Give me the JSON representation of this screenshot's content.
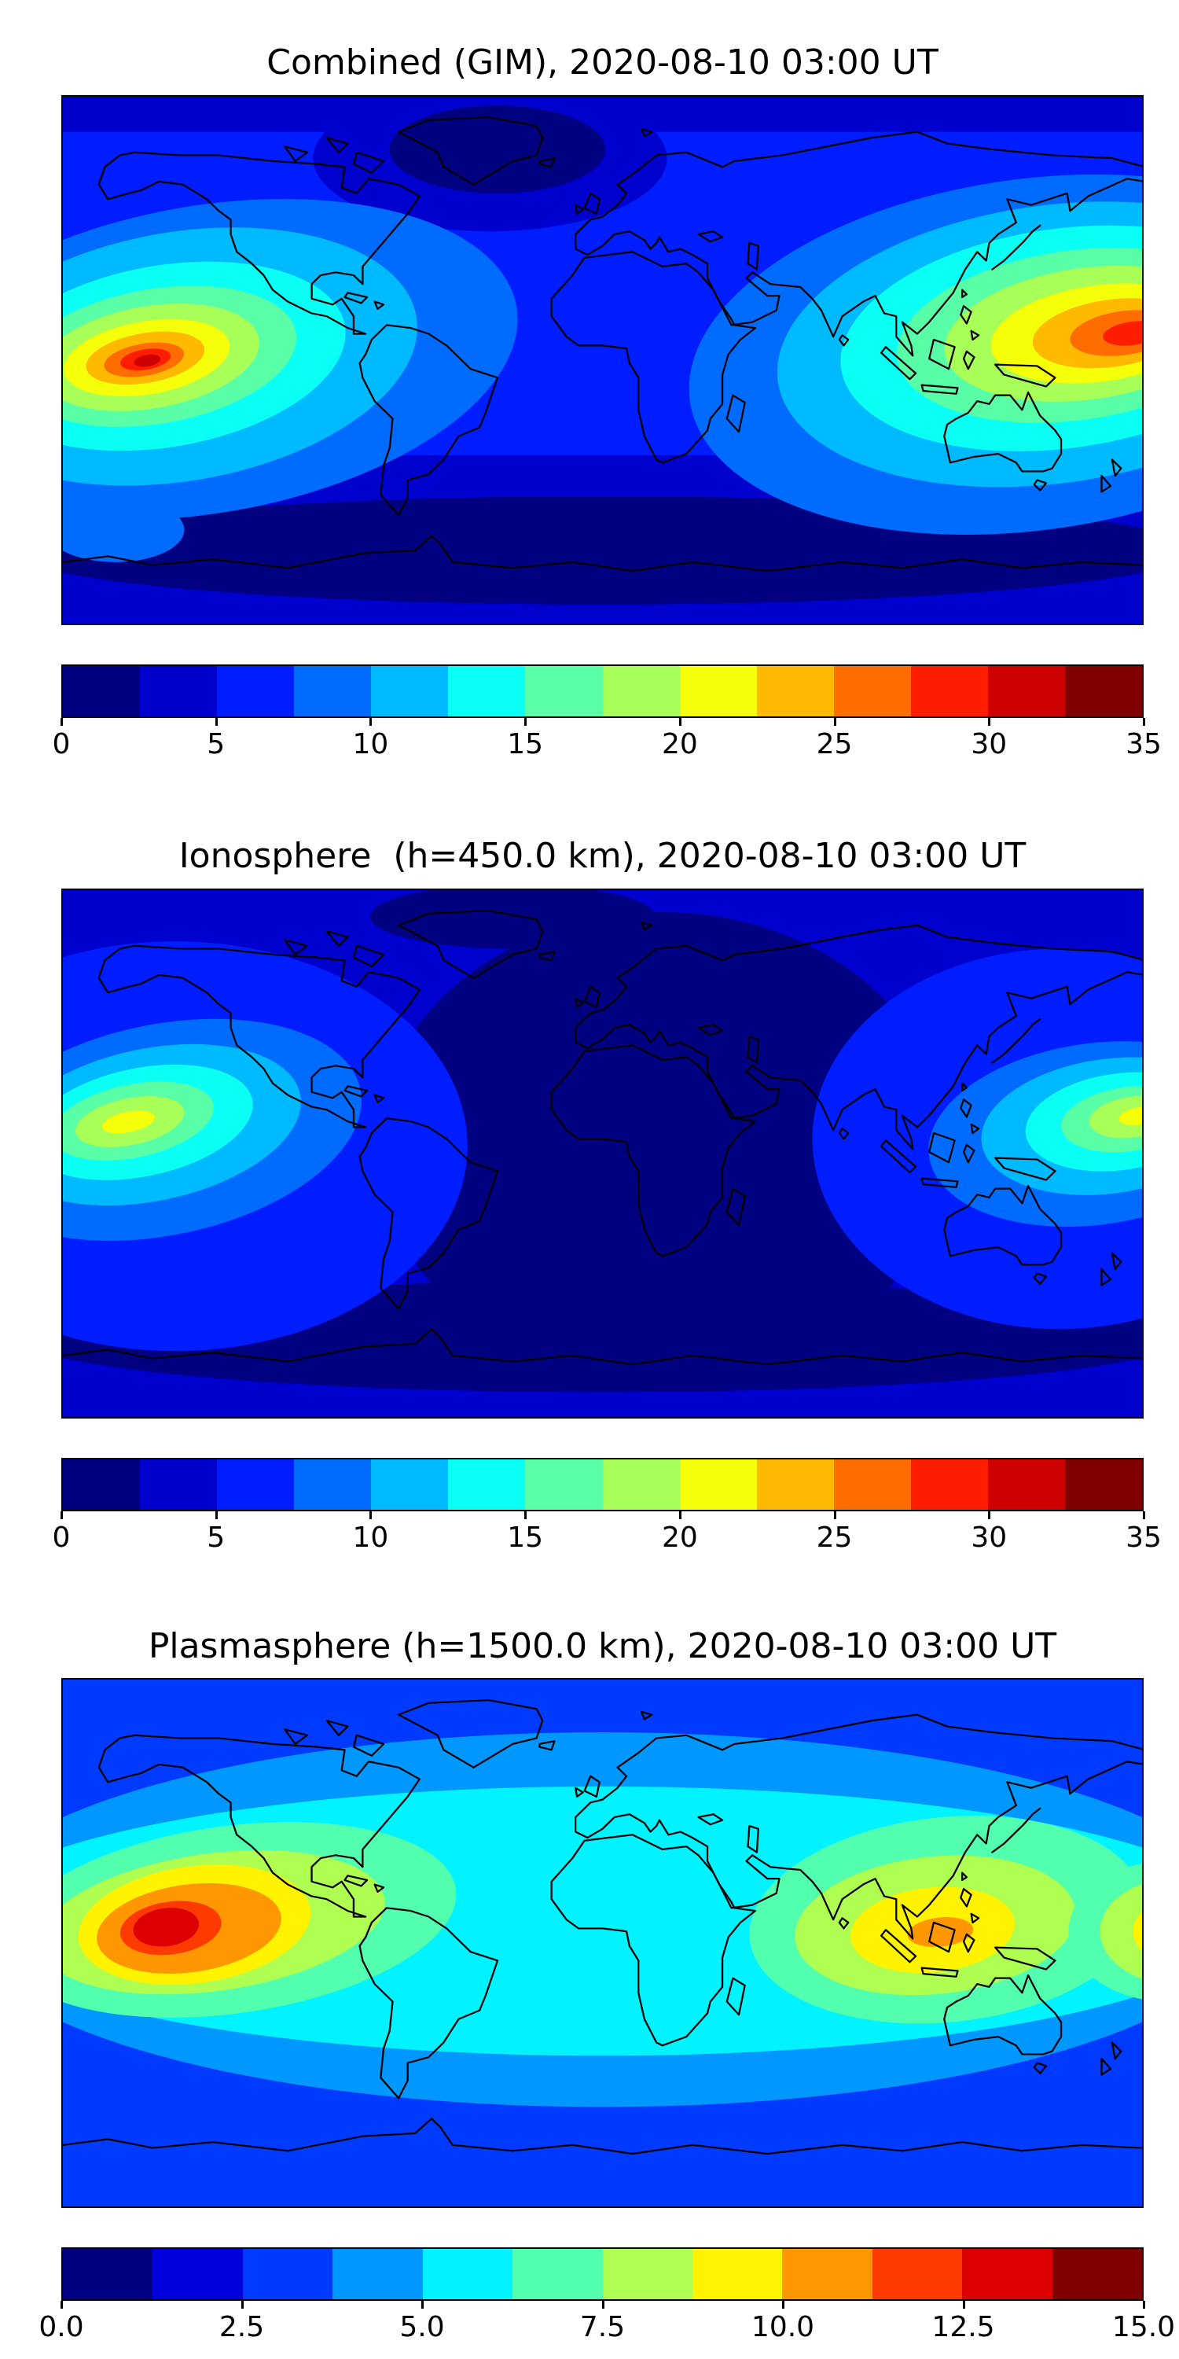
{
  "colors": {
    "background": "#ffffff",
    "text": "#000000",
    "coastline": "#000000",
    "jet14": [
      "#000080",
      "#0000ce",
      "#001dff",
      "#006cff",
      "#00baff",
      "#0afff5",
      "#58ffa7",
      "#a7ff58",
      "#f5ff0a",
      "#ffba00",
      "#ff6c00",
      "#ff1d00",
      "#ce0000",
      "#800000"
    ],
    "jet12": [
      "#000080",
      "#0000dc",
      "#003aff",
      "#0097ff",
      "#00f3ff",
      "#51ffae",
      "#aeff51",
      "#fff300",
      "#ff9700",
      "#ff3a00",
      "#dc0000",
      "#800000"
    ]
  },
  "panels": [
    {
      "title": "Combined (GIM), 2020-08-10 03:00 UT",
      "colorbar": {
        "colors_ref": "jet14",
        "min": 0,
        "max": 35,
        "ticks": [
          "0",
          "5",
          "10",
          "15",
          "20",
          "25",
          "30",
          "35"
        ]
      }
    },
    {
      "title": "Ionosphere  (h=450.0 km), 2020-08-10 03:00 UT",
      "colorbar": {
        "colors_ref": "jet14",
        "min": 0,
        "max": 35,
        "ticks": [
          "0",
          "5",
          "10",
          "15",
          "20",
          "25",
          "30",
          "35"
        ]
      }
    },
    {
      "title": "Plasmasphere (h=1500.0 km), 2020-08-10 03:00 UT",
      "colorbar": {
        "colors_ref": "jet12",
        "min": 0,
        "max": 15,
        "ticks": [
          "0.0",
          "2.5",
          "5.0",
          "7.5",
          "10.0",
          "12.5",
          "15.0"
        ]
      }
    }
  ],
  "chart_data": [
    {
      "type": "heatmap",
      "subtype": "filled-contour-world-map",
      "title": "Combined (GIM), 2020-08-10 03:00 UT",
      "projection": "equirectangular",
      "lon_range": [
        -180,
        180
      ],
      "lat_range": [
        -90,
        90
      ],
      "colormap": "jet",
      "levels": [
        0,
        2.5,
        5,
        7.5,
        10,
        12.5,
        15,
        17.5,
        20,
        22.5,
        25,
        27.5,
        30,
        32.5,
        35
      ],
      "colorbar_ticks": [
        0,
        5,
        10,
        15,
        20,
        25,
        30,
        35
      ],
      "coastlines": true,
      "features": [
        {
          "name": "primary-maximum-east-pacific",
          "lon": -148,
          "lat": 2,
          "peak_value": 34,
          "extent_lon": [
            -180,
            -105
          ],
          "extent_lat": [
            -30,
            30
          ]
        },
        {
          "name": "secondary-maximum-west-pacific",
          "lon": 172,
          "lat": 8,
          "peak_value": 31,
          "extent_lon": [
            120,
            180
          ],
          "extent_lat": [
            -25,
            35
          ]
        },
        {
          "name": "southern-high-latitude-minimum",
          "lon": 0,
          "lat": -62,
          "value": 1
        },
        {
          "name": "north-atlantic-arctic-low",
          "lon": -30,
          "lat": 72,
          "value": 2
        },
        {
          "name": "background-level",
          "value": 5
        }
      ]
    },
    {
      "type": "heatmap",
      "subtype": "filled-contour-world-map",
      "title": "Ionosphere  (h=450.0 km), 2020-08-10 03:00 UT",
      "projection": "equirectangular",
      "lon_range": [
        -180,
        180
      ],
      "lat_range": [
        -90,
        90
      ],
      "colormap": "jet",
      "levels": [
        0,
        2.5,
        5,
        7.5,
        10,
        12.5,
        15,
        17.5,
        20,
        22.5,
        25,
        27.5,
        30,
        32.5,
        35
      ],
      "colorbar_ticks": [
        0,
        5,
        10,
        15,
        20,
        25,
        30,
        35
      ],
      "coastlines": true,
      "features": [
        {
          "name": "primary-maximum-east-pacific",
          "lon": -150,
          "lat": 12,
          "peak_value": 20,
          "extent_lon": [
            -180,
            -100
          ],
          "extent_lat": [
            -15,
            35
          ]
        },
        {
          "name": "secondary-maximum-west-pacific",
          "lon": 178,
          "lat": 11,
          "peak_value": 18,
          "extent_lon": [
            130,
            180
          ],
          "extent_lat": [
            -10,
            35
          ]
        },
        {
          "name": "broad-minimum-atlantic-africa-europe",
          "lon": 20,
          "lat": 0,
          "value": 1.5
        },
        {
          "name": "southern-high-latitude-minimum",
          "lon": 0,
          "lat": -62,
          "value": 1.5
        },
        {
          "name": "background-level",
          "value": 4
        }
      ]
    },
    {
      "type": "heatmap",
      "subtype": "filled-contour-world-map",
      "title": "Plasmasphere (h=1500.0 km), 2020-08-10 03:00 UT",
      "projection": "equirectangular",
      "lon_range": [
        -180,
        180
      ],
      "lat_range": [
        -90,
        90
      ],
      "colormap": "jet",
      "levels": [
        0,
        1.25,
        2.5,
        3.75,
        5,
        6.25,
        7.5,
        8.75,
        10,
        11.25,
        12.5,
        13.75,
        15
      ],
      "colorbar_ticks": [
        0,
        2.5,
        5,
        7.5,
        10,
        12.5,
        15
      ],
      "coastlines": true,
      "features": [
        {
          "name": "primary-maximum-east-pacific",
          "lon": -146,
          "lat": 5,
          "peak_value": 13.5,
          "extent_lon": [
            -180,
            -70
          ],
          "extent_lat": [
            -25,
            30
          ]
        },
        {
          "name": "secondary-maximum-southeast-asia",
          "lon": 115,
          "lat": 7,
          "peak_value": 10.5,
          "extent_lon": [
            50,
            180
          ],
          "extent_lat": [
            -25,
            30
          ]
        },
        {
          "name": "equatorial-band-level",
          "lat_band": [
            -35,
            40
          ],
          "value": 6
        },
        {
          "name": "polar-band-level",
          "value": 3.5
        }
      ]
    }
  ]
}
